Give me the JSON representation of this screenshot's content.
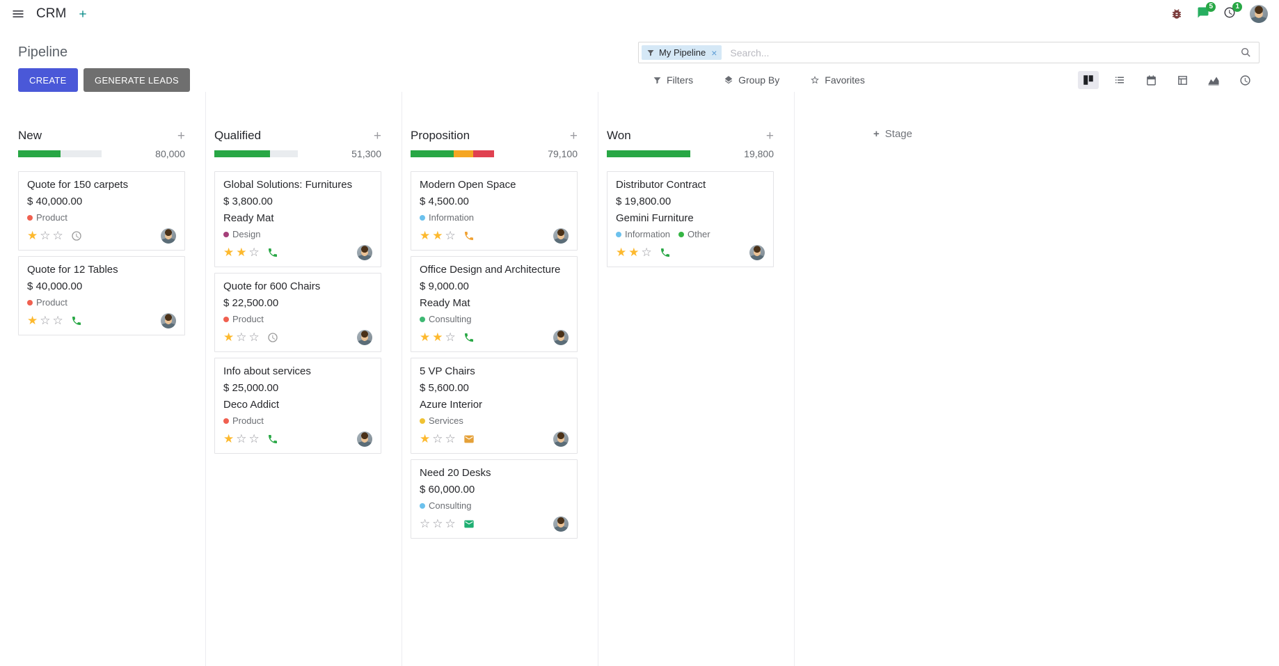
{
  "theme": {
    "primary": "#4a58d8",
    "secondary": "#6f6f6f",
    "progress_green": "#28a745",
    "progress_yellow": "#f5a623",
    "progress_red": "#e04150",
    "star": "#fdb92e",
    "facet_bg": "#d5e8f6",
    "badge": "#28a745"
  },
  "navbar": {
    "app_name": "CRM",
    "messages_badge": "5",
    "activities_badge": "1",
    "icons": [
      "menu-icon",
      "plus-icon",
      "bug-icon",
      "messages-icon",
      "activities-clock-icon",
      "user-avatar"
    ]
  },
  "control_panel": {
    "title": "Pipeline",
    "search_facet": "My Pipeline",
    "search_placeholder": "Search...",
    "create_label": "CREATE",
    "generate_leads_label": "GENERATE LEADS",
    "filters_label": "Filters",
    "group_by_label": "Group By",
    "favorites_label": "Favorites",
    "view_switcher_icons": [
      "kanban-view-icon",
      "list-view-icon",
      "calendar-view-icon",
      "pivot-view-icon",
      "graph-view-icon",
      "activity-view-icon"
    ],
    "active_view": "kanban"
  },
  "kanban": {
    "add_stage_label": "Stage",
    "columns": [
      {
        "name": "New",
        "total": "80,000",
        "progress": {
          "green": 51,
          "yellow": 0,
          "red": 0
        },
        "cards": [
          {
            "title": "Quote for 150 carpets",
            "amount": "$ 40,000.00",
            "partner": "",
            "tags": [
              {
                "label": "Product",
                "color": "#f06050"
              }
            ],
            "stars": 1,
            "activity": {
              "icon": "clock",
              "color": "#9b9b9b"
            }
          },
          {
            "title": "Quote for 12 Tables",
            "amount": "$ 40,000.00",
            "partner": "",
            "tags": [
              {
                "label": "Product",
                "color": "#f06050"
              }
            ],
            "stars": 1,
            "activity": {
              "icon": "phone",
              "color": "#28a745"
            }
          }
        ]
      },
      {
        "name": "Qualified",
        "total": "51,300",
        "progress": {
          "green": 67,
          "yellow": 0,
          "red": 0
        },
        "cards": [
          {
            "title": "Global Solutions: Furnitures",
            "amount": "$ 3,800.00",
            "partner": "Ready Mat",
            "tags": [
              {
                "label": "Design",
                "color": "#a5407a"
              }
            ],
            "stars": 2,
            "activity": {
              "icon": "phone",
              "color": "#28a745"
            }
          },
          {
            "title": "Quote for 600 Chairs",
            "amount": "$ 22,500.00",
            "partner": "",
            "tags": [
              {
                "label": "Product",
                "color": "#f06050"
              }
            ],
            "stars": 1,
            "activity": {
              "icon": "clock",
              "color": "#9b9b9b"
            }
          },
          {
            "title": "Info about services",
            "amount": "$ 25,000.00",
            "partner": "Deco Addict",
            "tags": [
              {
                "label": "Product",
                "color": "#f06050"
              }
            ],
            "stars": 1,
            "activity": {
              "icon": "phone",
              "color": "#28a745"
            }
          }
        ]
      },
      {
        "name": "Proposition",
        "total": "79,100",
        "progress": {
          "green": 52,
          "yellow": 23,
          "red": 25
        },
        "cards": [
          {
            "title": "Modern Open Space",
            "amount": "$ 4,500.00",
            "partner": "",
            "tags": [
              {
                "label": "Information",
                "color": "#6cc1ed"
              }
            ],
            "stars": 2,
            "activity": {
              "icon": "phone",
              "color": "#f0a132"
            }
          },
          {
            "title": "Office Design and Architecture",
            "amount": "$ 9,000.00",
            "partner": "Ready Mat",
            "tags": [
              {
                "label": "Consulting",
                "color": "#3eb873"
              }
            ],
            "stars": 2,
            "activity": {
              "icon": "phone",
              "color": "#28a745"
            }
          },
          {
            "title": "5 VP Chairs",
            "amount": "$ 5,600.00",
            "partner": "Azure Interior",
            "tags": [
              {
                "label": "Services",
                "color": "#f0c233"
              }
            ],
            "stars": 1,
            "activity": {
              "icon": "mail",
              "color": "#e5a139"
            }
          },
          {
            "title": "Need 20 Desks",
            "amount": "$ 60,000.00",
            "partner": "",
            "tags": [
              {
                "label": "Consulting",
                "color": "#6cc1ed"
              }
            ],
            "stars": 0,
            "activity": {
              "icon": "mail",
              "color": "#1faf72"
            }
          }
        ]
      },
      {
        "name": "Won",
        "total": "19,800",
        "progress": {
          "green": 100,
          "yellow": 0,
          "red": 0
        },
        "cards": [
          {
            "title": "Distributor Contract",
            "amount": "$ 19,800.00",
            "partner": "Gemini Furniture",
            "tags": [
              {
                "label": "Information",
                "color": "#6cc1ed"
              },
              {
                "label": "Other",
                "color": "#35b544"
              }
            ],
            "stars": 2,
            "activity": {
              "icon": "phone",
              "color": "#28a745"
            }
          }
        ]
      }
    ]
  }
}
